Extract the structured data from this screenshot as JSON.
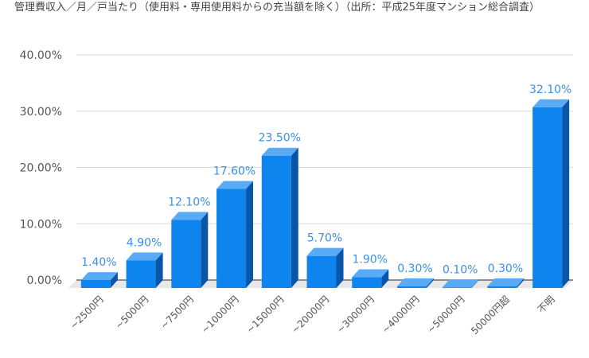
{
  "chart_data": {
    "type": "bar",
    "title": "管理費収入／月／戸当たり（使用料・専用使用料からの充当額を除く）（出所：平成25年度マンション総合調査）",
    "xlabel": "",
    "ylabel": "",
    "ylim": [
      0,
      40
    ],
    "yticks": [
      "0.00%",
      "10.00%",
      "20.00%",
      "30.00%",
      "40.00%"
    ],
    "yticks_values": [
      0,
      10,
      20,
      30,
      40
    ],
    "categories": [
      "~2500円",
      "~5000円",
      "~7500円",
      "~10000円",
      "~15000円",
      "~20000円",
      "~30000円",
      "~40000円",
      "~50000円",
      "50000円超",
      "不明"
    ],
    "values": [
      1.4,
      4.9,
      12.1,
      17.6,
      23.5,
      5.7,
      1.9,
      0.3,
      0.1,
      0.3,
      32.1
    ],
    "data_labels": [
      "1.40%",
      "4.90%",
      "12.10%",
      "17.60%",
      "23.50%",
      "5.70%",
      "1.90%",
      "0.30%",
      "0.10%",
      "0.30%",
      "32.10%"
    ],
    "grid": true,
    "legend": "none",
    "colors": {
      "bar_front": "#0d84ee",
      "bar_top": "#5aabf6",
      "bar_side": "#0a55a8",
      "grid": "#d9d9d9",
      "floor": "#e8e8e8",
      "baseline": "#6b6b6b",
      "label": "#3b8fe8"
    }
  }
}
